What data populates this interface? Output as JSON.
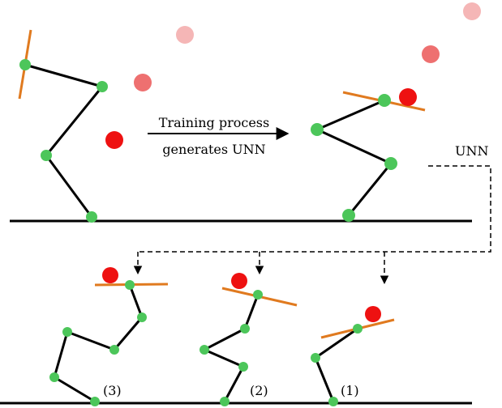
{
  "caption": {
    "line1": "Training process",
    "line2": "generates UNN"
  },
  "unn_label": "UNN",
  "pose_labels": {
    "first": "(1)",
    "second": "(2)",
    "third": "(3)"
  },
  "colors": {
    "joint": "#4cc65a",
    "link": "#000000",
    "paddle": "#e07a1f",
    "ball": "#ee1111",
    "ground": "#000000",
    "dashed_connector": "#000000"
  }
}
